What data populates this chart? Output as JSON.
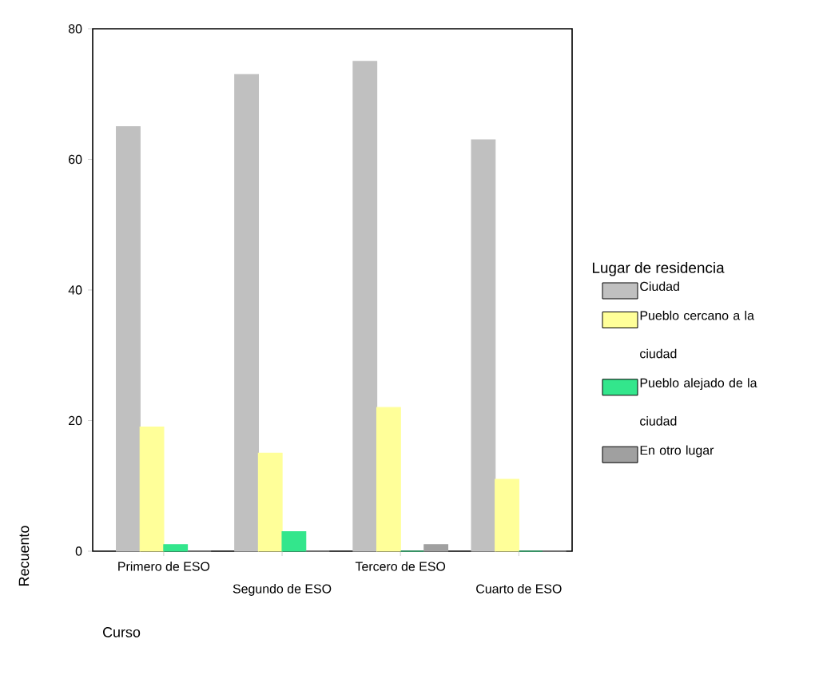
{
  "chart_data": {
    "type": "bar",
    "xlabel": "Curso",
    "ylabel": "Recuento",
    "legend_title": "Lugar de residencia",
    "categories": [
      "Primero de ESO",
      "Segundo de ESO",
      "Tercero de ESO",
      "Cuarto de ESO"
    ],
    "series": [
      {
        "name": "Ciudad",
        "color": "#c0c0c0",
        "values": [
          65,
          73,
          75,
          63
        ]
      },
      {
        "name": "Pueblo cercano a la ciudad",
        "color": "#ffff99",
        "values": [
          19,
          15,
          22,
          11
        ]
      },
      {
        "name": "Pueblo alejado de la ciudad",
        "color": "#33e68c",
        "values": [
          1,
          3,
          0,
          0
        ]
      },
      {
        "name": "En otro lugar",
        "color": "#a0a0a0",
        "values": [
          0,
          0,
          1,
          0
        ]
      }
    ],
    "ylim": [
      0,
      80
    ],
    "yticks": [
      0,
      20,
      40,
      60,
      80
    ],
    "grid": false,
    "legend": "right"
  }
}
